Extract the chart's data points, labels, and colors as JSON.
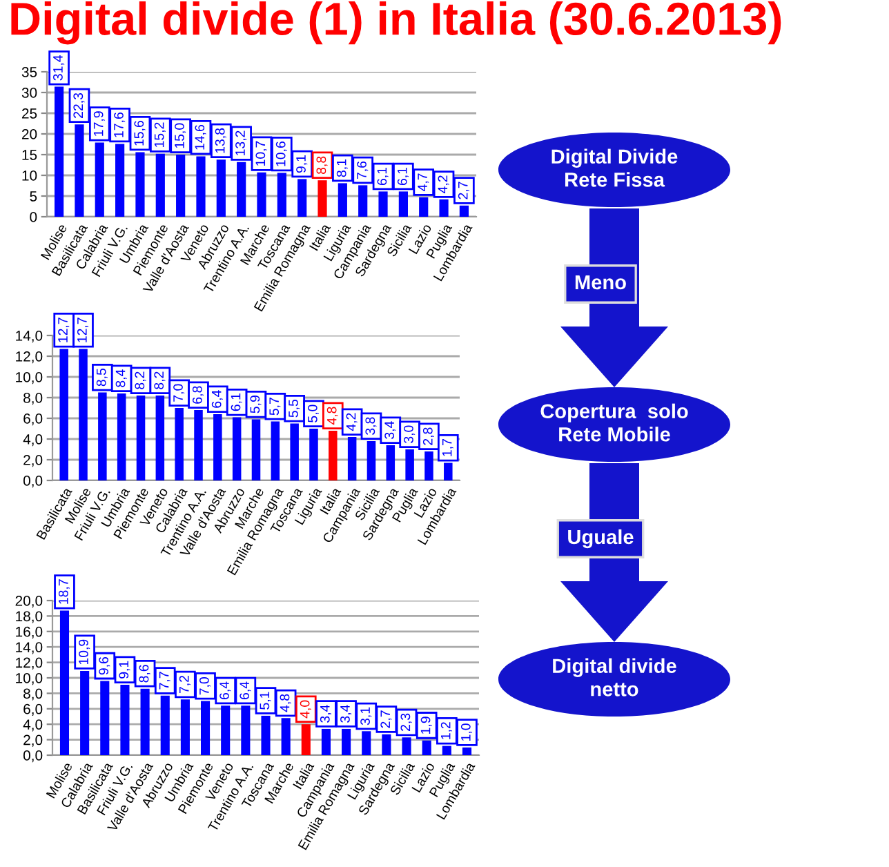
{
  "chart_data": [
    {
      "type": "bar",
      "title": "Digital divide (1) in Italia (30.6.2013)",
      "categories": [
        "Molise",
        "Basilicata",
        "Calabria",
        "Friuli V.G.",
        "Umbria",
        "Piemonte",
        "Valle d'Aosta",
        "Veneto",
        "Abruzzo",
        "Trentino A.A.",
        "Marche",
        "Toscana",
        "Emilia Romagna",
        "Italia",
        "Liguria",
        "Campania",
        "Sardegna",
        "Sicilia",
        "Lazio",
        "Puglia",
        "Lombardia"
      ],
      "values": [
        31.4,
        22.3,
        17.9,
        17.6,
        15.6,
        15.2,
        15.0,
        14.6,
        13.8,
        13.2,
        10.7,
        10.6,
        9.1,
        8.8,
        8.1,
        7.6,
        6.1,
        6.1,
        4.7,
        4.2,
        2.7
      ],
      "value_labels": [
        "31,4",
        "22,3",
        "17,9",
        "17,6",
        "15,6",
        "15,2",
        "15,0",
        "14,6",
        "13,8",
        "13,2",
        "10,7",
        "10,6",
        "9,1",
        "8,8",
        "8,1",
        "7,6",
        "6,1",
        "6,1",
        "4,7",
        "4,2",
        "2,7"
      ],
      "colors": [
        "#0000ff",
        "#0000ff",
        "#0000ff",
        "#0000ff",
        "#0000ff",
        "#0000ff",
        "#0000ff",
        "#0000ff",
        "#0000ff",
        "#0000ff",
        "#0000ff",
        "#0000ff",
        "#0000ff",
        "#ff0000",
        "#0000ff",
        "#0000ff",
        "#0000ff",
        "#0000ff",
        "#0000ff",
        "#0000ff",
        "#0000ff"
      ],
      "ylim": [
        0,
        35
      ],
      "yticks": [
        0,
        5,
        10,
        15,
        20,
        25,
        30,
        35
      ],
      "grid": "y"
    },
    {
      "type": "bar",
      "categories": [
        "Basilicata",
        "Molise",
        "Friuli V.G.",
        "Umbria",
        "Piemonte",
        "Veneto",
        "Calabria",
        "Trentino A.A.",
        "Valle d'Aosta",
        "Abruzzo",
        "Marche",
        "Emilia Romagna",
        "Toscana",
        "Liguria",
        "Italia",
        "Campania",
        "Sicilia",
        "Sardegna",
        "Puglia",
        "Lazio",
        "Lombardia"
      ],
      "values": [
        12.7,
        12.7,
        8.5,
        8.4,
        8.2,
        8.2,
        7.0,
        6.8,
        6.4,
        6.1,
        5.9,
        5.7,
        5.5,
        5.0,
        4.8,
        4.2,
        3.8,
        3.4,
        3.0,
        2.8,
        1.7
      ],
      "value_labels": [
        "12,7",
        "12,7",
        "8,5",
        "8,4",
        "8,2",
        "8,2",
        "7,0",
        "6,8",
        "6,4",
        "6,1",
        "5,9",
        "5,7",
        "5,5",
        "5,0",
        "4,8",
        "4,2",
        "3,8",
        "3,4",
        "3,0",
        "2,8",
        "1,7"
      ],
      "colors": [
        "#0000ff",
        "#0000ff",
        "#0000ff",
        "#0000ff",
        "#0000ff",
        "#0000ff",
        "#0000ff",
        "#0000ff",
        "#0000ff",
        "#0000ff",
        "#0000ff",
        "#0000ff",
        "#0000ff",
        "#0000ff",
        "#ff0000",
        "#0000ff",
        "#0000ff",
        "#0000ff",
        "#0000ff",
        "#0000ff",
        "#0000ff"
      ],
      "ylim": [
        0,
        14
      ],
      "yticks": [
        {
          "value": 0,
          "label": "0,0"
        },
        {
          "value": 2,
          "label": "2,0"
        },
        {
          "value": 4,
          "label": "4,0"
        },
        {
          "value": 6,
          "label": "6,0"
        },
        {
          "value": 8,
          "label": "8,0"
        },
        {
          "value": 10,
          "label": "10,0"
        },
        {
          "value": 12,
          "label": "12,0"
        },
        {
          "value": 14,
          "label": "14,0"
        }
      ],
      "grid": "y"
    },
    {
      "type": "bar",
      "categories": [
        "Molise",
        "Calabria",
        "Basilicata",
        "Friuli V.G.",
        "Valle d'Aosta",
        "Abruzzo",
        "Umbria",
        "Piemonte",
        "Veneto",
        "Trentino A.A.",
        "Toscana",
        "Marche",
        "Italia",
        "Campania",
        "Emilia Romagna",
        "Liguria",
        "Sardegna",
        "Sicilia",
        "Lazio",
        "Puglia",
        "Lombardia"
      ],
      "values": [
        18.7,
        10.9,
        9.6,
        9.1,
        8.6,
        7.7,
        7.2,
        7.0,
        6.4,
        6.4,
        5.1,
        4.8,
        4.0,
        3.4,
        3.4,
        3.1,
        2.7,
        2.3,
        1.9,
        1.2,
        1.0
      ],
      "value_labels": [
        "18,7",
        "10,9",
        "9,6",
        "9,1",
        "8,6",
        "7,7",
        "7,2",
        "7,0",
        "6,4",
        "6,4",
        "5,1",
        "4,8",
        "4,0",
        "3,4",
        "3,4",
        "3,1",
        "2,7",
        "2,3",
        "1,9",
        "1,2",
        "1,0"
      ],
      "colors": [
        "#0000ff",
        "#0000ff",
        "#0000ff",
        "#0000ff",
        "#0000ff",
        "#0000ff",
        "#0000ff",
        "#0000ff",
        "#0000ff",
        "#0000ff",
        "#0000ff",
        "#0000ff",
        "#ff0000",
        "#0000ff",
        "#0000ff",
        "#0000ff",
        "#0000ff",
        "#0000ff",
        "#0000ff",
        "#0000ff",
        "#0000ff"
      ],
      "ylim": [
        0,
        20
      ],
      "yticks": [
        {
          "value": 0,
          "label": "0,0"
        },
        {
          "value": 2,
          "label": "2,0"
        },
        {
          "value": 4,
          "label": "4,0"
        },
        {
          "value": 6,
          "label": "6,0"
        },
        {
          "value": 8,
          "label": "8,0"
        },
        {
          "value": 10,
          "label": "10,0"
        },
        {
          "value": 12,
          "label": "12,0"
        },
        {
          "value": 14,
          "label": "14,0"
        },
        {
          "value": 16,
          "label": "16,0"
        },
        {
          "value": 18,
          "label": "18,0"
        },
        {
          "value": 20,
          "label": "20,0"
        }
      ],
      "grid": "y"
    },
    {
      "type": "other",
      "color": "#1414cc",
      "annotations": [
        "Digital Divide\nRete Fissa",
        "Meno",
        "Copertura  solo\nRete Mobile",
        "Uguale",
        "Digital divide\nnetto"
      ]
    }
  ]
}
